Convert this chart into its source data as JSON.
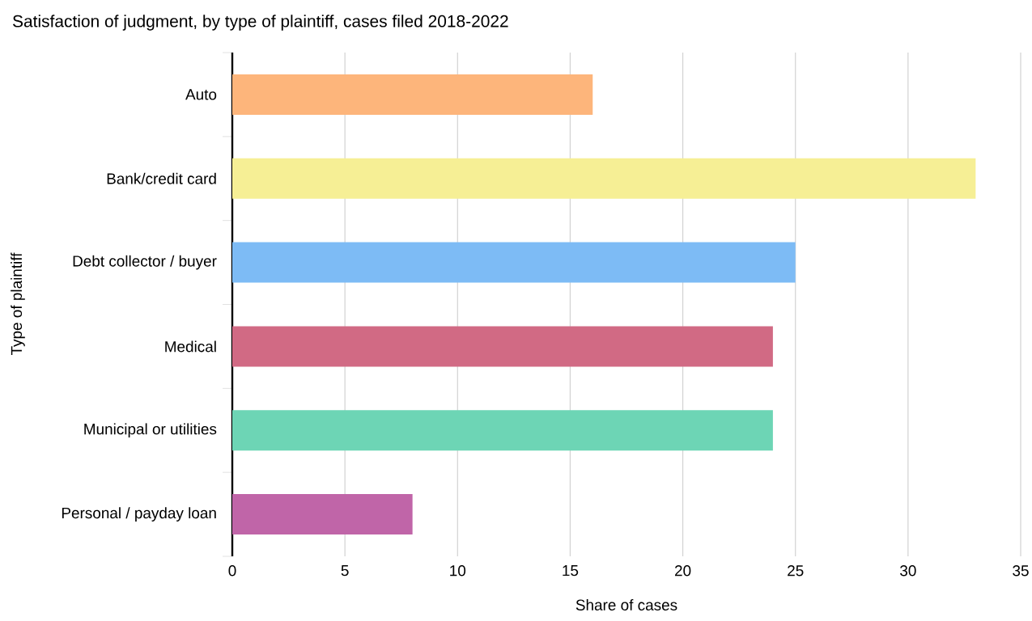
{
  "chart_data": {
    "type": "bar",
    "orientation": "horizontal",
    "title": "Satisfaction of judgment, by type of plaintiff, cases filed 2018-2022",
    "xlabel": "Share of cases",
    "ylabel": "Type of plaintiff",
    "categories": [
      "Auto",
      "Bank/credit card",
      "Debt collector / buyer",
      "Medical",
      "Municipal or utilities",
      "Personal / payday loan"
    ],
    "values": [
      16,
      33,
      25,
      24,
      24,
      8
    ],
    "colors": [
      "#fdb57b",
      "#f6ef95",
      "#7dbbf5",
      "#d16a84",
      "#6dd5b5",
      "#c065a8"
    ],
    "xlim": [
      0,
      35
    ],
    "xticks": [
      0,
      5,
      10,
      15,
      20,
      25,
      30,
      35
    ],
    "grid": "x"
  }
}
